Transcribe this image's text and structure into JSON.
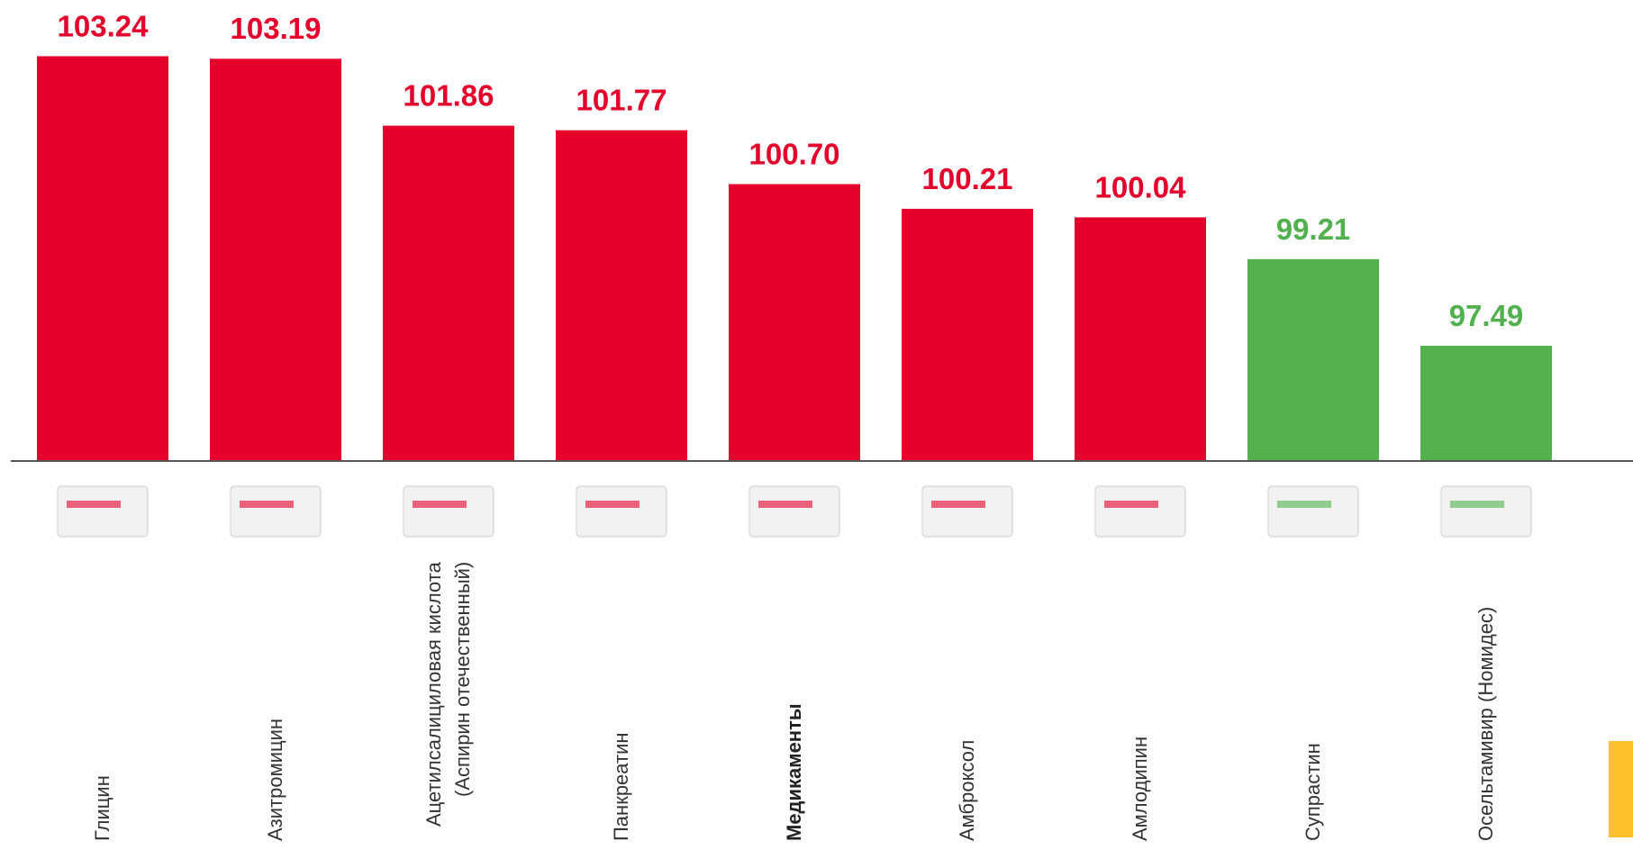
{
  "chart_data": {
    "type": "bar",
    "categories": [
      "Глицин",
      "Азитромицин",
      "Ацетилсалициловая кислота (Аспирин отечественный)",
      "Панкреатин",
      "Медикаменты",
      "Амброксол",
      "Амлодипин",
      "Супрастин",
      "Осельтамивир (Номидес)"
    ],
    "values": [
      103.24,
      103.19,
      101.86,
      101.77,
      100.7,
      100.21,
      100.04,
      99.21,
      97.49
    ],
    "value_labels": [
      "103.24",
      "103.19",
      "101.86",
      "101.77",
      "100.70",
      "100.21",
      "100.04",
      "99.21",
      "97.49"
    ],
    "colors": [
      "#e4002b",
      "#e4002b",
      "#e4002b",
      "#e4002b",
      "#e4002b",
      "#e4002b",
      "#e4002b",
      "#52b04f",
      "#52b04f"
    ],
    "bold_categories": [
      4
    ],
    "ylim": [
      95.2,
      104.5
    ]
  }
}
